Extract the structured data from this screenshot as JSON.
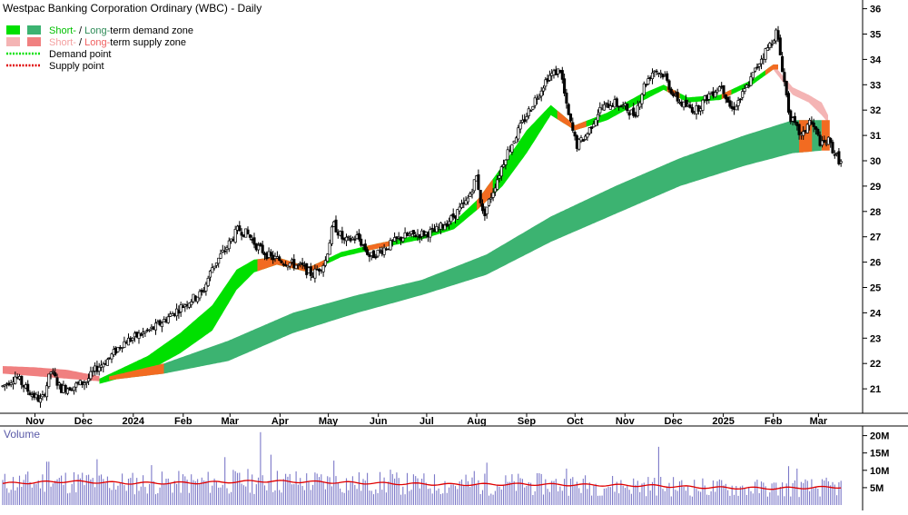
{
  "chart_data": {
    "type": "candlestick",
    "title": "Westpac Banking Corporation Ordinary (WBC) - Daily",
    "legend": {
      "placement": "top-left",
      "items": [
        {
          "kind": "demand-zone",
          "short_text": "Short-",
          "sep": " / ",
          "long_text": "Long-",
          "rest": "term demand zone",
          "short_color": "#00e000",
          "long_color": "#3cb371",
          "short_label_color": "#00c000",
          "long_label_color": "#2e8b57"
        },
        {
          "kind": "supply-zone",
          "short_text": "Short-",
          "sep": " / ",
          "long_text": "Long-",
          "rest": "term supply zone",
          "short_color": "#f4b4b4",
          "long_color": "#f08080",
          "short_label_color": "#f4a0a0",
          "long_label_color": "#f06060"
        },
        {
          "kind": "demand-point",
          "label": "Demand point",
          "color": "#00e000"
        },
        {
          "kind": "supply-point",
          "label": "Supply point",
          "color": "#e00000"
        }
      ]
    },
    "price_axis": {
      "ticks": [
        "36",
        "35",
        "34",
        "33",
        "32",
        "31",
        "30",
        "29",
        "28",
        "27",
        "26",
        "25",
        "24",
        "23",
        "22",
        "21"
      ],
      "range": [
        20,
        36.2
      ],
      "side": "right"
    },
    "volume_panel": {
      "label": "Volume",
      "ticks": [
        "20M",
        "15M",
        "10M",
        "5M"
      ],
      "range": [
        0,
        22
      ],
      "average_color": "#e00000",
      "bar_color": "#7b78c8"
    },
    "x_axis": {
      "labels": [
        {
          "text": "Nov",
          "day": 20
        },
        {
          "text": "Dec",
          "day": 50
        },
        {
          "text": "2024",
          "day": 81
        },
        {
          "text": "Feb",
          "day": 112
        },
        {
          "text": "Mar",
          "day": 141
        },
        {
          "text": "Apr",
          "day": 172
        },
        {
          "text": "May",
          "day": 202
        },
        {
          "text": "Jun",
          "day": 233
        },
        {
          "text": "Jul",
          "day": 263
        },
        {
          "text": "Aug",
          "day": 294
        },
        {
          "text": "Sep",
          "day": 325
        },
        {
          "text": "Oct",
          "day": 355
        },
        {
          "text": "Nov",
          "day": 386
        },
        {
          "text": "Dec",
          "day": 416
        },
        {
          "text": "2025",
          "day": 447
        },
        {
          "text": "Feb",
          "day": 478
        },
        {
          "text": "Mar",
          "day": 506
        }
      ],
      "day_range": [
        0,
        521
      ]
    },
    "price_path": [
      {
        "d": 0,
        "p": 21.1
      },
      {
        "d": 8,
        "p": 21.5
      },
      {
        "d": 16,
        "p": 20.9
      },
      {
        "d": 24,
        "p": 20.5
      },
      {
        "d": 30,
        "p": 21.7
      },
      {
        "d": 36,
        "p": 21.0
      },
      {
        "d": 44,
        "p": 21.1
      },
      {
        "d": 52,
        "p": 21.3
      },
      {
        "d": 58,
        "p": 21.8
      },
      {
        "d": 66,
        "p": 22.2
      },
      {
        "d": 74,
        "p": 22.8
      },
      {
        "d": 84,
        "p": 23.1
      },
      {
        "d": 94,
        "p": 23.4
      },
      {
        "d": 104,
        "p": 23.9
      },
      {
        "d": 114,
        "p": 24.4
      },
      {
        "d": 124,
        "p": 24.8
      },
      {
        "d": 130,
        "p": 25.8
      },
      {
        "d": 138,
        "p": 26.5
      },
      {
        "d": 146,
        "p": 27.3
      },
      {
        "d": 152,
        "p": 27.1
      },
      {
        "d": 158,
        "p": 26.6
      },
      {
        "d": 166,
        "p": 26.2
      },
      {
        "d": 176,
        "p": 26.0
      },
      {
        "d": 186,
        "p": 25.8
      },
      {
        "d": 192,
        "p": 25.5
      },
      {
        "d": 200,
        "p": 26.0
      },
      {
        "d": 205,
        "p": 27.5
      },
      {
        "d": 212,
        "p": 26.8
      },
      {
        "d": 220,
        "p": 27.0
      },
      {
        "d": 228,
        "p": 26.2
      },
      {
        "d": 238,
        "p": 26.6
      },
      {
        "d": 248,
        "p": 27.0
      },
      {
        "d": 258,
        "p": 27.1
      },
      {
        "d": 268,
        "p": 27.2
      },
      {
        "d": 278,
        "p": 27.7
      },
      {
        "d": 288,
        "p": 28.4
      },
      {
        "d": 294,
        "p": 29.4
      },
      {
        "d": 298,
        "p": 27.8
      },
      {
        "d": 304,
        "p": 28.8
      },
      {
        "d": 312,
        "p": 30.2
      },
      {
        "d": 320,
        "p": 31.2
      },
      {
        "d": 330,
        "p": 32.4
      },
      {
        "d": 338,
        "p": 33.3
      },
      {
        "d": 346,
        "p": 33.6
      },
      {
        "d": 350,
        "p": 32.0
      },
      {
        "d": 356,
        "p": 30.6
      },
      {
        "d": 362,
        "p": 31.0
      },
      {
        "d": 370,
        "p": 32.0
      },
      {
        "d": 378,
        "p": 32.3
      },
      {
        "d": 386,
        "p": 32.1
      },
      {
        "d": 392,
        "p": 31.8
      },
      {
        "d": 398,
        "p": 33.0
      },
      {
        "d": 404,
        "p": 33.6
      },
      {
        "d": 410,
        "p": 33.4
      },
      {
        "d": 416,
        "p": 32.6
      },
      {
        "d": 422,
        "p": 32.2
      },
      {
        "d": 430,
        "p": 32.0
      },
      {
        "d": 438,
        "p": 32.6
      },
      {
        "d": 446,
        "p": 33.0
      },
      {
        "d": 452,
        "p": 32.0
      },
      {
        "d": 458,
        "p": 32.5
      },
      {
        "d": 464,
        "p": 33.2
      },
      {
        "d": 470,
        "p": 34.0
      },
      {
        "d": 476,
        "p": 34.6
      },
      {
        "d": 480,
        "p": 35.1
      },
      {
        "d": 484,
        "p": 33.5
      },
      {
        "d": 488,
        "p": 31.8
      },
      {
        "d": 492,
        "p": 31.3
      },
      {
        "d": 496,
        "p": 30.9
      },
      {
        "d": 500,
        "p": 31.6
      },
      {
        "d": 504,
        "p": 31.2
      },
      {
        "d": 508,
        "p": 30.6
      },
      {
        "d": 512,
        "p": 30.8
      },
      {
        "d": 516,
        "p": 30.3
      },
      {
        "d": 520,
        "p": 29.9
      }
    ],
    "long_term_zone": {
      "color": "#3cb371",
      "upper": [
        {
          "d": 60,
          "p": 21.4
        },
        {
          "d": 100,
          "p": 22.0
        },
        {
          "d": 140,
          "p": 22.9
        },
        {
          "d": 180,
          "p": 24.0
        },
        {
          "d": 220,
          "p": 24.7
        },
        {
          "d": 260,
          "p": 25.3
        },
        {
          "d": 300,
          "p": 26.3
        },
        {
          "d": 340,
          "p": 27.8
        },
        {
          "d": 380,
          "p": 29.0
        },
        {
          "d": 420,
          "p": 30.1
        },
        {
          "d": 460,
          "p": 31.0
        },
        {
          "d": 490,
          "p": 31.6
        },
        {
          "d": 508,
          "p": 31.6
        }
      ],
      "lower": [
        {
          "d": 60,
          "p": 21.3
        },
        {
          "d": 100,
          "p": 21.6
        },
        {
          "d": 140,
          "p": 22.1
        },
        {
          "d": 180,
          "p": 23.2
        },
        {
          "d": 220,
          "p": 24.0
        },
        {
          "d": 260,
          "p": 24.7
        },
        {
          "d": 300,
          "p": 25.5
        },
        {
          "d": 340,
          "p": 26.8
        },
        {
          "d": 380,
          "p": 27.9
        },
        {
          "d": 420,
          "p": 29.0
        },
        {
          "d": 460,
          "p": 29.8
        },
        {
          "d": 490,
          "p": 30.3
        },
        {
          "d": 508,
          "p": 30.4
        }
      ]
    },
    "long_term_supply_zone": {
      "color": "#f08080",
      "upper": [
        {
          "d": 0,
          "p": 21.9
        },
        {
          "d": 20,
          "p": 21.85
        },
        {
          "d": 40,
          "p": 21.75
        },
        {
          "d": 60,
          "p": 21.5
        }
      ],
      "lower": [
        {
          "d": 0,
          "p": 21.6
        },
        {
          "d": 20,
          "p": 21.5
        },
        {
          "d": 40,
          "p": 21.4
        },
        {
          "d": 60,
          "p": 21.3
        }
      ]
    },
    "short_term_zone": {
      "color": "#00e000",
      "upper": [
        {
          "d": 60,
          "p": 21.4
        },
        {
          "d": 90,
          "p": 22.3
        },
        {
          "d": 110,
          "p": 23.2
        },
        {
          "d": 130,
          "p": 24.3
        },
        {
          "d": 145,
          "p": 25.7
        },
        {
          "d": 156,
          "p": 26.1
        },
        {
          "d": 170,
          "p": 26.2
        },
        {
          "d": 190,
          "p": 25.8
        },
        {
          "d": 210,
          "p": 26.4
        },
        {
          "d": 230,
          "p": 26.7
        },
        {
          "d": 260,
          "p": 27.1
        },
        {
          "d": 280,
          "p": 27.6
        },
        {
          "d": 295,
          "p": 28.5
        },
        {
          "d": 310,
          "p": 29.8
        },
        {
          "d": 325,
          "p": 31.2
        },
        {
          "d": 340,
          "p": 32.2
        },
        {
          "d": 355,
          "p": 31.4
        },
        {
          "d": 375,
          "p": 31.9
        },
        {
          "d": 395,
          "p": 32.6
        },
        {
          "d": 410,
          "p": 33.0
        },
        {
          "d": 425,
          "p": 32.5
        },
        {
          "d": 445,
          "p": 32.6
        },
        {
          "d": 465,
          "p": 33.2
        },
        {
          "d": 478,
          "p": 33.8
        }
      ],
      "lower": [
        {
          "d": 60,
          "p": 21.2
        },
        {
          "d": 90,
          "p": 21.7
        },
        {
          "d": 110,
          "p": 22.4
        },
        {
          "d": 130,
          "p": 23.3
        },
        {
          "d": 145,
          "p": 24.9
        },
        {
          "d": 156,
          "p": 25.6
        },
        {
          "d": 170,
          "p": 25.9
        },
        {
          "d": 190,
          "p": 25.6
        },
        {
          "d": 210,
          "p": 26.2
        },
        {
          "d": 230,
          "p": 26.5
        },
        {
          "d": 260,
          "p": 26.9
        },
        {
          "d": 280,
          "p": 27.3
        },
        {
          "d": 295,
          "p": 28.1
        },
        {
          "d": 310,
          "p": 29.0
        },
        {
          "d": 325,
          "p": 30.3
        },
        {
          "d": 340,
          "p": 31.8
        },
        {
          "d": 355,
          "p": 31.2
        },
        {
          "d": 375,
          "p": 31.6
        },
        {
          "d": 395,
          "p": 32.3
        },
        {
          "d": 410,
          "p": 32.8
        },
        {
          "d": 425,
          "p": 32.3
        },
        {
          "d": 445,
          "p": 32.4
        },
        {
          "d": 465,
          "p": 33.0
        },
        {
          "d": 478,
          "p": 33.6
        }
      ]
    },
    "short_term_supply_zone": {
      "color": "#f4b4b4",
      "upper": [
        {
          "d": 478,
          "p": 33.8
        },
        {
          "d": 490,
          "p": 32.9
        },
        {
          "d": 500,
          "p": 32.6
        },
        {
          "d": 508,
          "p": 32.3
        },
        {
          "d": 512,
          "p": 31.8
        }
      ],
      "lower": [
        {
          "d": 478,
          "p": 33.6
        },
        {
          "d": 490,
          "p": 32.6
        },
        {
          "d": 500,
          "p": 32.3
        },
        {
          "d": 508,
          "p": 31.8
        },
        {
          "d": 512,
          "p": 31.5
        }
      ]
    },
    "orange_segments": [
      {
        "from": 66,
        "to": 100,
        "zone": "long"
      },
      {
        "from": 158,
        "to": 200,
        "zone": "short"
      },
      {
        "from": 226,
        "to": 240,
        "zone": "short"
      },
      {
        "from": 294,
        "to": 304,
        "zone": "short"
      },
      {
        "from": 344,
        "to": 362,
        "zone": "short"
      },
      {
        "from": 412,
        "to": 420,
        "zone": "short"
      },
      {
        "from": 446,
        "to": 452,
        "zone": "short"
      },
      {
        "from": 473,
        "to": 481,
        "zone": "short"
      },
      {
        "from": 494,
        "to": 502,
        "zone": "long"
      },
      {
        "from": 508,
        "to": 513,
        "zone": "long"
      }
    ],
    "volume_average": [
      {
        "d": 0,
        "v": 6.2
      },
      {
        "d": 40,
        "v": 6.8
      },
      {
        "d": 80,
        "v": 6.3
      },
      {
        "d": 120,
        "v": 6.4
      },
      {
        "d": 160,
        "v": 6.9
      },
      {
        "d": 200,
        "v": 6.6
      },
      {
        "d": 240,
        "v": 6.2
      },
      {
        "d": 280,
        "v": 5.9
      },
      {
        "d": 320,
        "v": 6.0
      },
      {
        "d": 360,
        "v": 5.8
      },
      {
        "d": 400,
        "v": 5.6
      },
      {
        "d": 440,
        "v": 5.0
      },
      {
        "d": 480,
        "v": 4.8
      },
      {
        "d": 520,
        "v": 5.2
      }
    ],
    "volume_spikes": [
      {
        "d": 28,
        "v": 12.5
      },
      {
        "d": 58,
        "v": 13.2
      },
      {
        "d": 92,
        "v": 11.5
      },
      {
        "d": 138,
        "v": 13.8
      },
      {
        "d": 160,
        "v": 21.0
      },
      {
        "d": 166,
        "v": 14.5
      },
      {
        "d": 205,
        "v": 12.8
      },
      {
        "d": 240,
        "v": 10.2
      },
      {
        "d": 292,
        "v": 9.8
      },
      {
        "d": 300,
        "v": 12.2
      },
      {
        "d": 350,
        "v": 10.5
      },
      {
        "d": 407,
        "v": 16.8
      },
      {
        "d": 488,
        "v": 11.2
      },
      {
        "d": 493,
        "v": 10.5
      }
    ]
  }
}
